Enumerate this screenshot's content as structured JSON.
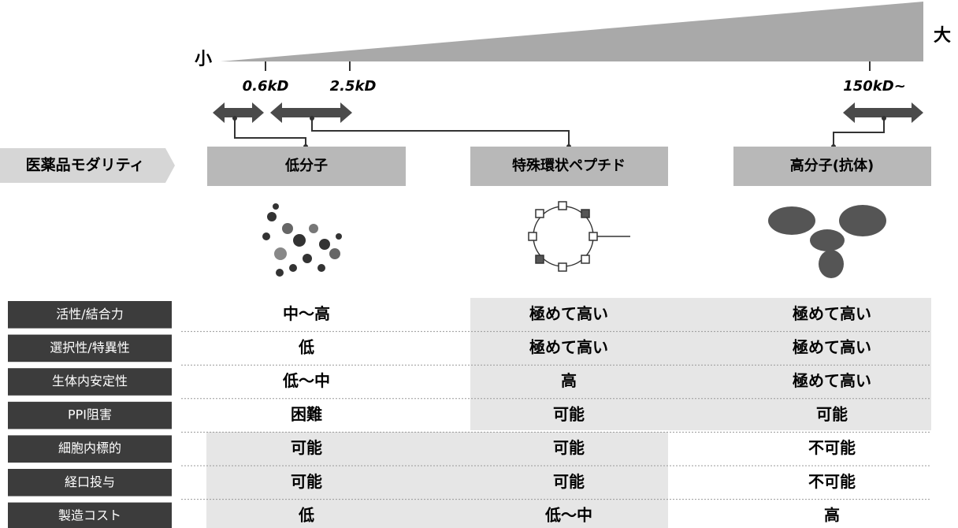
{
  "scale": {
    "min_label": "小",
    "max_label": "大",
    "ticks": [
      "0.6kD",
      "2.5kD",
      "150kD~"
    ]
  },
  "modality_header": "医薬品モダリティ",
  "modalities": [
    "低分子",
    "特殊環状ペプチド",
    "高分子(抗体)"
  ],
  "table": {
    "rows": [
      {
        "label": "活性/結合力",
        "cells": [
          "中～高",
          "極めて高い",
          "極めて高い"
        ]
      },
      {
        "label": "選択性/特異性",
        "cells": [
          "低",
          "極めて高い",
          "極めて高い"
        ]
      },
      {
        "label": "生体内安定性",
        "cells": [
          "低～中",
          "高",
          "極めて高い"
        ]
      },
      {
        "label": "PPI阻害",
        "cells": [
          "困難",
          "可能",
          "可能"
        ]
      },
      {
        "label": "細胞内標的",
        "cells": [
          "可能",
          "可能",
          "不可能"
        ]
      },
      {
        "label": "経口投与",
        "cells": [
          "可能",
          "可能",
          "不可能"
        ]
      },
      {
        "label": "製造コスト",
        "cells": [
          "低",
          "低～中",
          "高"
        ]
      }
    ]
  }
}
